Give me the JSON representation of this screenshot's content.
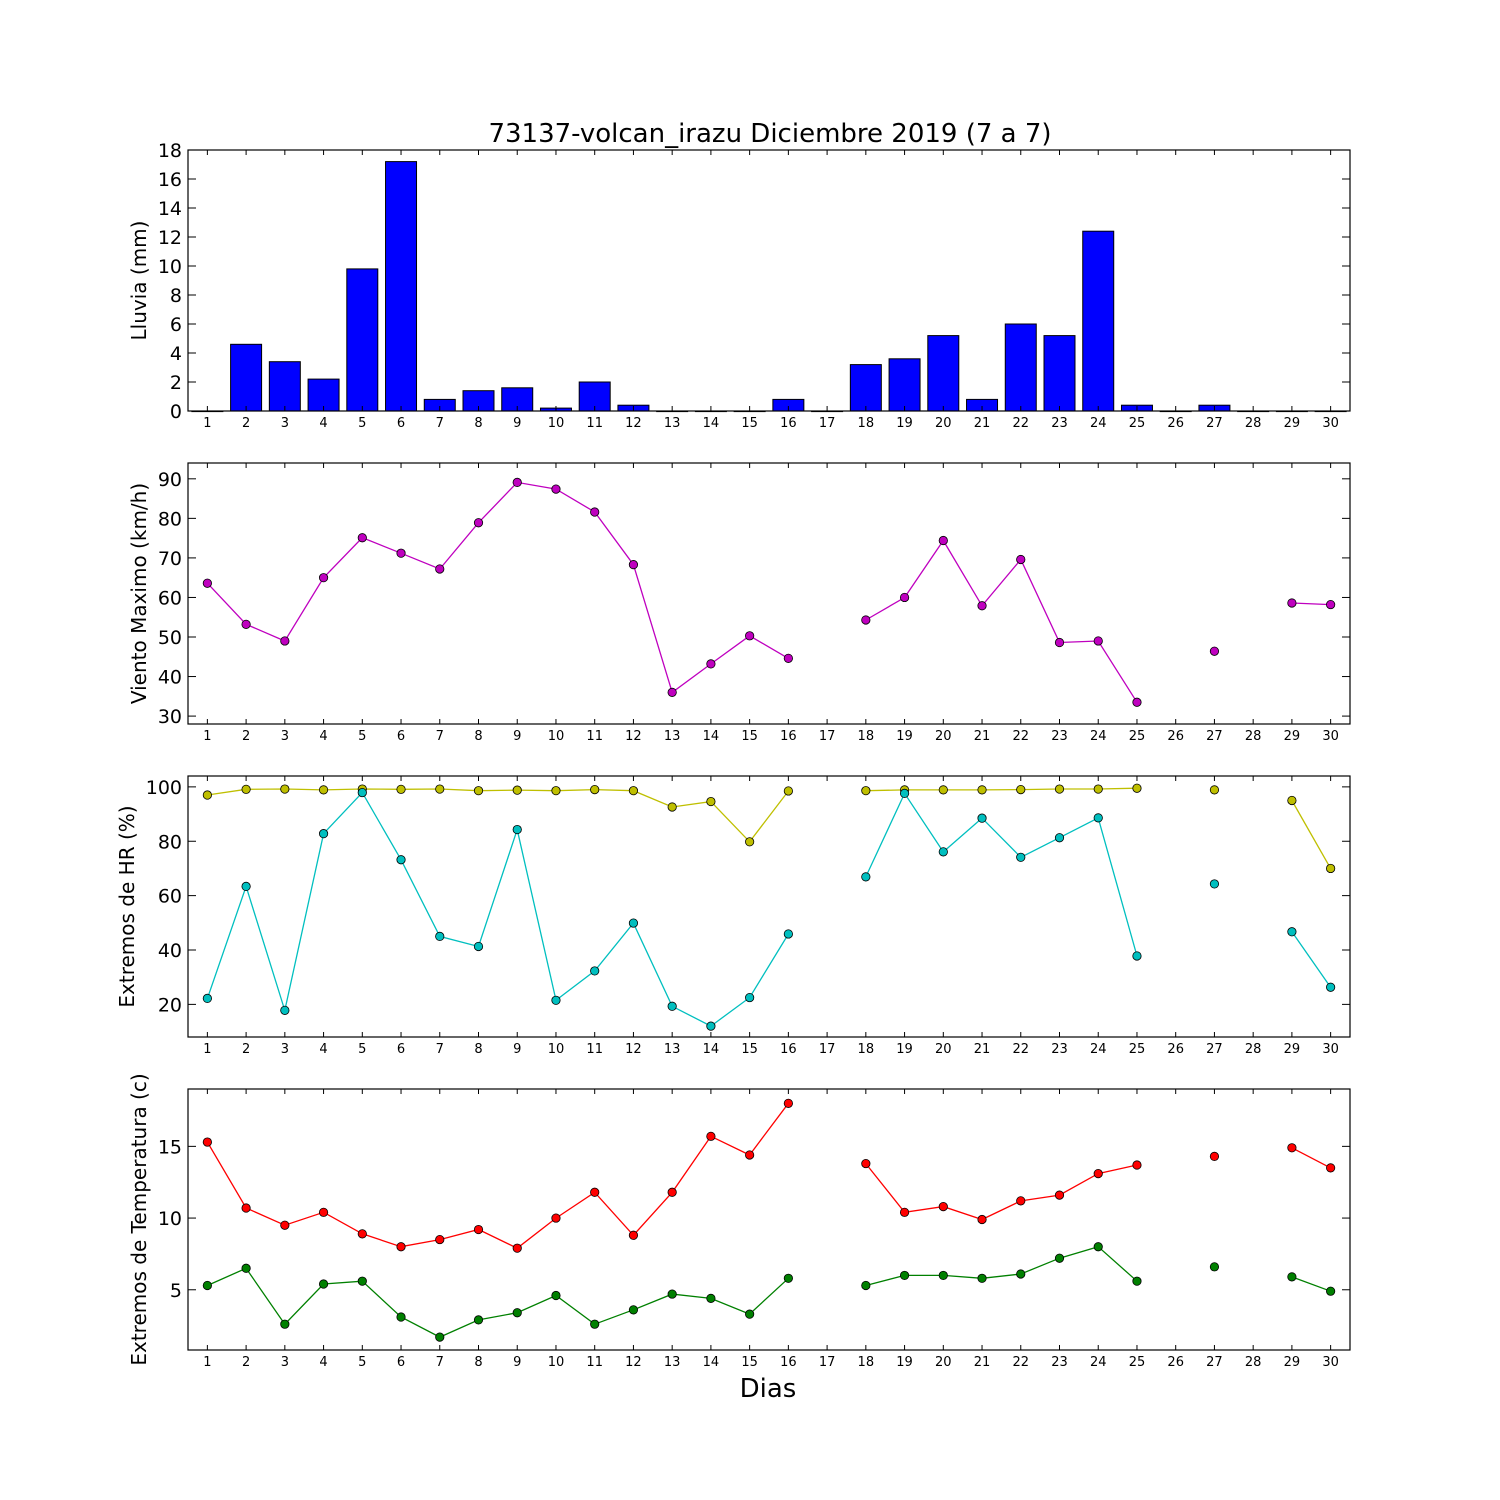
{
  "chart_data": [
    {
      "type": "bar",
      "title": "73137-volcan_irazu Diciembre 2019  (7 a 7)",
      "xlabel": "",
      "ylabel": "Lluvia (mm)",
      "x": [
        1,
        2,
        3,
        4,
        5,
        6,
        7,
        8,
        9,
        10,
        11,
        12,
        13,
        14,
        15,
        16,
        17,
        18,
        19,
        20,
        21,
        22,
        23,
        24,
        25,
        26,
        27,
        28,
        29,
        30
      ],
      "values": [
        0,
        4.6,
        3.4,
        2.2,
        9.8,
        17.2,
        0.8,
        1.4,
        1.6,
        0.2,
        2.0,
        0.4,
        0,
        0,
        0,
        0.8,
        0,
        3.2,
        3.6,
        5.2,
        0.8,
        6.0,
        5.2,
        12.4,
        0.4,
        0,
        0.4,
        0,
        0,
        0
      ],
      "ylim": [
        0,
        18
      ],
      "yticks": [
        0,
        2,
        4,
        6,
        8,
        10,
        12,
        14,
        16,
        18
      ],
      "xticks": [
        1,
        2,
        3,
        4,
        5,
        6,
        7,
        8,
        9,
        10,
        11,
        12,
        13,
        14,
        15,
        16,
        17,
        18,
        19,
        20,
        21,
        22,
        23,
        24,
        25,
        26,
        27,
        28,
        29,
        30
      ],
      "color": "#0000ff"
    },
    {
      "type": "line",
      "ylabel": "Viento Maximo (km/h)",
      "x": [
        1,
        2,
        3,
        4,
        5,
        6,
        7,
        8,
        9,
        10,
        11,
        12,
        13,
        14,
        15,
        16,
        17,
        18,
        19,
        20,
        21,
        22,
        23,
        24,
        25,
        26,
        27,
        28,
        29,
        30
      ],
      "series": [
        {
          "color": "#bf00bf",
          "values": [
            63.6,
            53.2,
            49.0,
            65.0,
            75.1,
            71.2,
            67.2,
            78.9,
            89.1,
            87.4,
            81.6,
            68.3,
            36.0,
            43.2,
            50.3,
            44.6,
            null,
            54.3,
            60.0,
            74.4,
            57.9,
            69.6,
            48.6,
            49.0,
            33.5,
            null,
            46.4,
            null,
            58.6,
            58.2
          ]
        }
      ],
      "ylim": [
        28,
        94
      ],
      "yticks": [
        30,
        40,
        50,
        60,
        70,
        80,
        90
      ],
      "xticks": [
        1,
        2,
        3,
        4,
        5,
        6,
        7,
        8,
        9,
        10,
        11,
        12,
        13,
        14,
        15,
        16,
        17,
        18,
        19,
        20,
        21,
        22,
        23,
        24,
        25,
        26,
        27,
        28,
        29,
        30
      ]
    },
    {
      "type": "line",
      "ylabel": "Extremos de HR (%)",
      "x": [
        1,
        2,
        3,
        4,
        5,
        6,
        7,
        8,
        9,
        10,
        11,
        12,
        13,
        14,
        15,
        16,
        17,
        18,
        19,
        20,
        21,
        22,
        23,
        24,
        25,
        26,
        27,
        28,
        29,
        30
      ],
      "series": [
        {
          "color": "#bfbf00",
          "values": [
            97.0,
            99.1,
            99.2,
            98.9,
            99.2,
            99.1,
            99.2,
            98.6,
            98.8,
            98.6,
            99.0,
            98.6,
            92.6,
            94.6,
            79.8,
            98.5,
            null,
            98.6,
            98.9,
            98.9,
            98.9,
            99.0,
            99.2,
            99.2,
            99.5,
            null,
            98.9,
            null,
            95.0,
            70.0
          ]
        },
        {
          "color": "#00bfbf",
          "values": [
            22.2,
            63.4,
            17.8,
            82.8,
            97.9,
            73.2,
            45.0,
            41.3,
            84.3,
            21.5,
            32.3,
            49.9,
            19.3,
            12.0,
            22.5,
            45.9,
            null,
            66.9,
            97.6,
            76.1,
            88.5,
            74.1,
            81.3,
            88.6,
            37.8,
            null,
            64.3,
            null,
            46.7,
            26.3
          ]
        }
      ],
      "ylim": [
        8,
        104
      ],
      "yticks": [
        20,
        40,
        60,
        80,
        100
      ],
      "xticks": [
        1,
        2,
        3,
        4,
        5,
        6,
        7,
        8,
        9,
        10,
        11,
        12,
        13,
        14,
        15,
        16,
        17,
        18,
        19,
        20,
        21,
        22,
        23,
        24,
        25,
        26,
        27,
        28,
        29,
        30
      ]
    },
    {
      "type": "line",
      "ylabel": "Extremos de Temperatura (c)",
      "xlabel": "Dias",
      "x": [
        1,
        2,
        3,
        4,
        5,
        6,
        7,
        8,
        9,
        10,
        11,
        12,
        13,
        14,
        15,
        16,
        17,
        18,
        19,
        20,
        21,
        22,
        23,
        24,
        25,
        26,
        27,
        28,
        29,
        30
      ],
      "series": [
        {
          "color": "#ff0000",
          "values": [
            15.3,
            10.7,
            9.5,
            10.4,
            8.9,
            8.0,
            8.5,
            9.2,
            7.9,
            10.0,
            11.8,
            8.8,
            11.8,
            15.7,
            14.4,
            18.0,
            null,
            13.8,
            10.4,
            10.8,
            9.9,
            11.2,
            11.6,
            13.1,
            13.7,
            null,
            14.3,
            null,
            14.9,
            13.5
          ]
        },
        {
          "color": "#008000",
          "values": [
            5.3,
            6.5,
            2.6,
            5.4,
            5.6,
            3.1,
            1.7,
            2.9,
            3.4,
            4.6,
            2.6,
            3.6,
            4.7,
            4.4,
            3.3,
            5.8,
            null,
            5.3,
            6.0,
            6.0,
            5.8,
            6.1,
            7.2,
            8.0,
            5.6,
            null,
            6.6,
            null,
            5.9,
            4.9
          ]
        }
      ],
      "ylim": [
        0.8,
        19.0
      ],
      "yticks": [
        5,
        10,
        15
      ],
      "xticks": [
        1,
        2,
        3,
        4,
        5,
        6,
        7,
        8,
        9,
        10,
        11,
        12,
        13,
        14,
        15,
        16,
        17,
        18,
        19,
        20,
        21,
        22,
        23,
        24,
        25,
        26,
        27,
        28,
        29,
        30
      ]
    }
  ]
}
